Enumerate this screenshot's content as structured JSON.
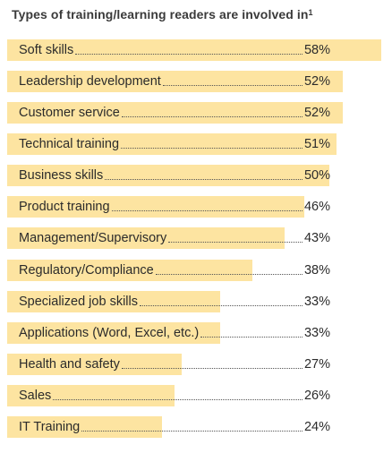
{
  "chart_data": {
    "type": "bar",
    "orientation": "horizontal",
    "title": "Types of training/learning readers are involved in",
    "title_superscript": "1",
    "categories": [
      "Soft skills",
      "Leadership development",
      "Customer service",
      "Technical training",
      "Business skills",
      "Product training",
      "Management/Supervisory",
      "Regulatory/Compliance",
      "Specialized job skills",
      "Applications (Word, Excel, etc.)",
      "Health and safety",
      "Sales",
      "IT Training"
    ],
    "values": [
      58,
      52,
      52,
      51,
      50,
      46,
      43,
      38,
      33,
      33,
      27,
      26,
      24
    ],
    "value_labels": [
      "58%",
      "52%",
      "52%",
      "51%",
      "50%",
      "46%",
      "43%",
      "38%",
      "33%",
      "33%",
      "27%",
      "26%",
      "24%"
    ],
    "unit": "%",
    "bar_color": "#fde4a1",
    "grid": false,
    "legend": "none"
  }
}
